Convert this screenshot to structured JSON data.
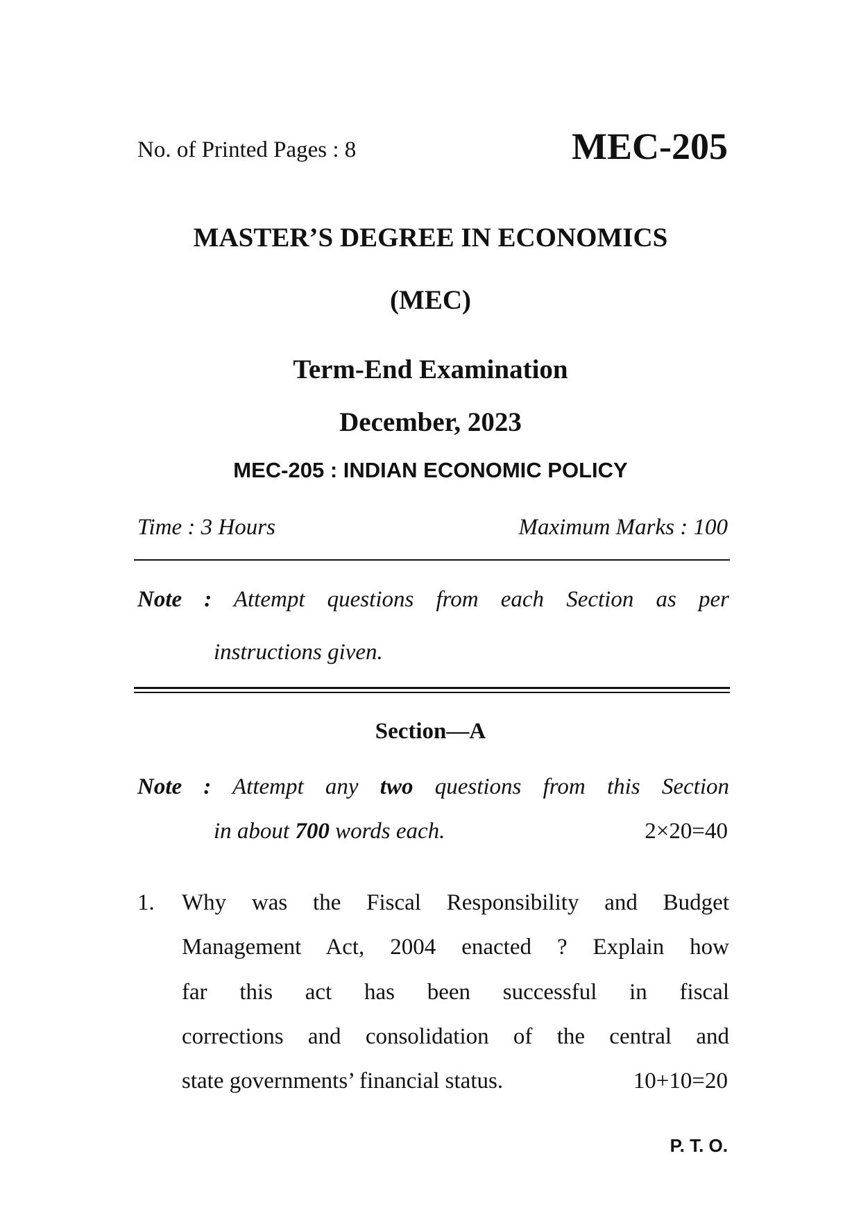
{
  "header": {
    "printed_pages": "No. of Printed Pages : 8",
    "course_code": "MEC-205"
  },
  "title": {
    "degree": "MASTER’S DEGREE IN ECONOMICS",
    "abbr": "(MEC)",
    "exam": "Term-End Examination",
    "date": "December, 2023",
    "course": "MEC-205 : INDIAN ECONOMIC POLICY"
  },
  "meta": {
    "time": "Time : 3 Hours",
    "max_marks": "Maximum Marks : 100"
  },
  "general_note": {
    "label": "Note :",
    "line1": "Attempt questions from each Section as per",
    "line2": "instructions given."
  },
  "section_a": {
    "heading": "Section—A",
    "note_label": "Note :",
    "note_pre": "Attempt any",
    "note_bold1": "two",
    "note_post": "questions from this Section",
    "line2_pre": "in about",
    "line2_bold": "700",
    "line2_post": "words each.",
    "marks": "2×20=40"
  },
  "questions": [
    {
      "number": "1.",
      "lines": [
        "Why was the Fiscal Responsibility and Budget",
        "Management Act, 2004 enacted ? Explain how",
        "far this act has been successful in fiscal",
        "corrections and consolidation of the central and",
        "state governments’ financial status."
      ],
      "marks": "10+10=20"
    }
  ],
  "footer": {
    "pto": "P. T. O."
  }
}
